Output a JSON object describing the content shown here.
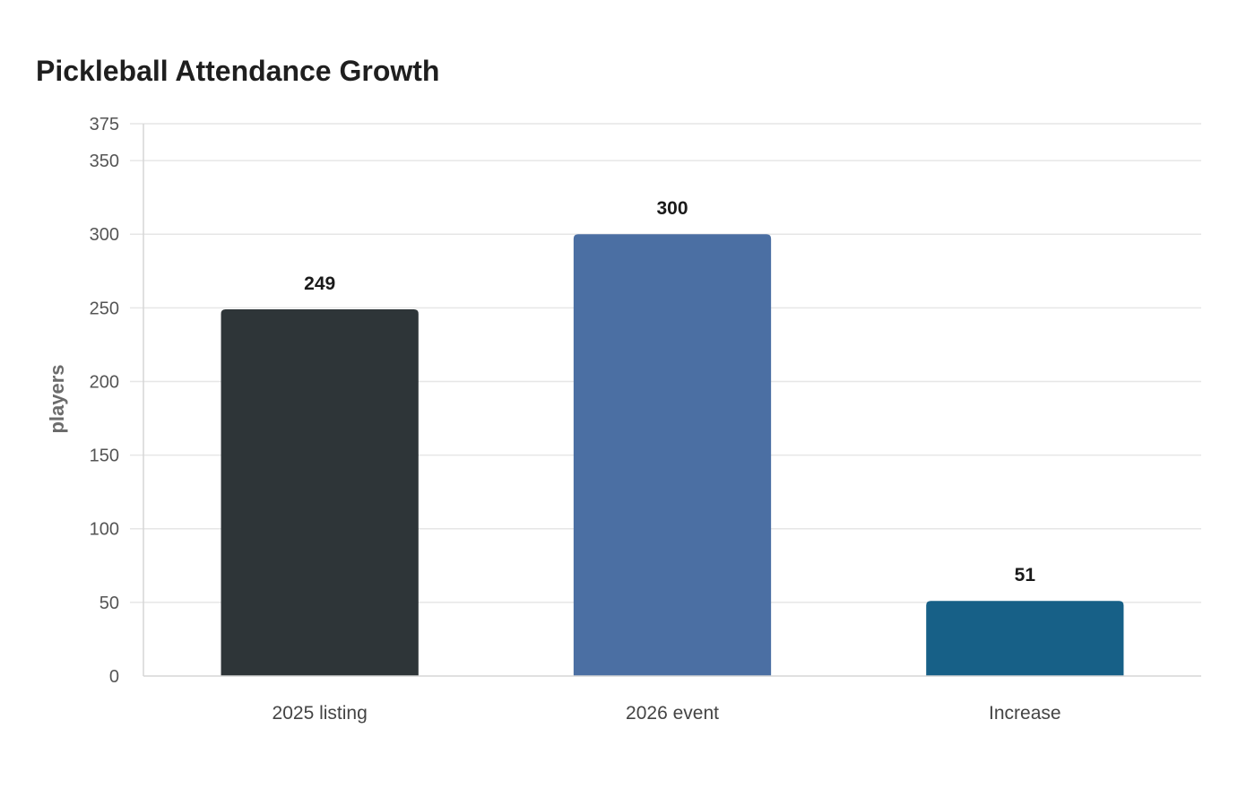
{
  "chart_data": {
    "type": "bar",
    "title": "Pickleball Attendance Growth",
    "xlabel": "",
    "ylabel": "players",
    "ylim": [
      0,
      375
    ],
    "yticks": [
      0,
      50,
      100,
      150,
      200,
      250,
      300,
      350,
      375
    ],
    "categories": [
      "2025 listing",
      "2026 event",
      "Increase"
    ],
    "values": [
      249,
      300,
      51
    ],
    "value_labels": [
      "249",
      "300",
      "51"
    ],
    "colors": [
      "#2e3538",
      "#4b6fa3",
      "#176087"
    ],
    "grid": true,
    "legend": "none"
  }
}
